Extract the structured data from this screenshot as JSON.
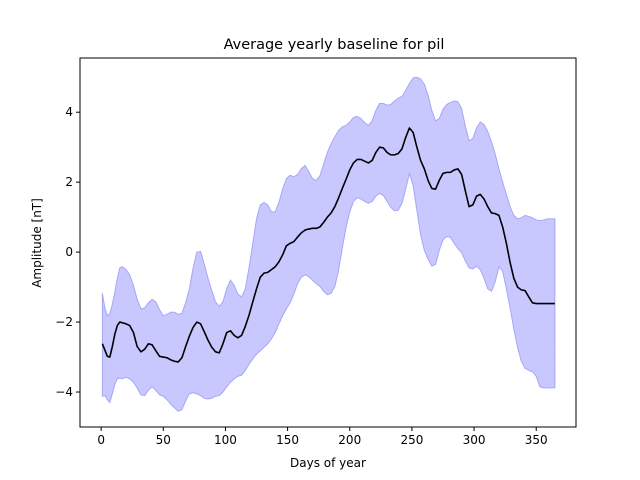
{
  "chart_data": {
    "type": "area",
    "title": "Average yearly baseline for pil",
    "xlabel": "Days of year",
    "ylabel": "Amplitude [nT]",
    "xlim": [
      -17,
      382
    ],
    "ylim": [
      -5.0,
      5.55
    ],
    "xticks": [
      0,
      50,
      100,
      150,
      200,
      250,
      300,
      350
    ],
    "yticks": [
      -4,
      -2,
      0,
      2,
      4
    ],
    "grid": false,
    "colors": {
      "mean_line": "#000000",
      "band_fill": "#c8c8ff",
      "band_edge": "#a6a6f6"
    },
    "series": [
      {
        "role": "mean",
        "x": [
          1,
          3,
          5,
          7,
          9,
          11,
          13,
          15,
          17,
          20,
          23,
          26,
          29,
          32,
          35,
          38,
          41,
          44,
          47,
          50,
          53,
          56,
          59,
          62,
          65,
          68,
          71,
          74,
          77,
          80,
          83,
          86,
          89,
          92,
          95,
          98,
          101,
          104,
          107,
          110,
          113,
          116,
          119,
          122,
          125,
          128,
          131,
          134,
          137,
          140,
          143,
          146,
          149,
          152,
          155,
          158,
          161,
          164,
          167,
          170,
          173,
          176,
          179,
          182,
          185,
          188,
          191,
          194,
          197,
          200,
          203,
          206,
          209,
          212,
          215,
          218,
          221,
          224,
          227,
          230,
          233,
          236,
          239,
          242,
          245,
          248,
          251,
          254,
          257,
          260,
          263,
          266,
          269,
          272,
          275,
          278,
          281,
          284,
          287,
          290,
          293,
          296,
          299,
          302,
          305,
          308,
          311,
          314,
          317,
          320,
          323,
          326,
          329,
          332,
          335,
          338,
          341,
          344,
          347,
          350,
          353,
          356,
          359,
          362,
          365
        ],
        "values": [
          -2.62,
          -2.8,
          -2.98,
          -3.0,
          -2.7,
          -2.35,
          -2.1,
          -2.0,
          -2.02,
          -2.05,
          -2.1,
          -2.3,
          -2.7,
          -2.85,
          -2.78,
          -2.62,
          -2.65,
          -2.82,
          -2.98,
          -3.0,
          -3.02,
          -3.08,
          -3.12,
          -3.14,
          -3.02,
          -2.7,
          -2.4,
          -2.15,
          -2.0,
          -2.05,
          -2.28,
          -2.52,
          -2.72,
          -2.85,
          -2.88,
          -2.62,
          -2.3,
          -2.25,
          -2.38,
          -2.45,
          -2.38,
          -2.12,
          -1.8,
          -1.42,
          -1.05,
          -0.72,
          -0.6,
          -0.58,
          -0.5,
          -0.42,
          -0.28,
          -0.08,
          0.18,
          0.25,
          0.3,
          0.43,
          0.55,
          0.63,
          0.66,
          0.68,
          0.68,
          0.72,
          0.85,
          1.0,
          1.12,
          1.3,
          1.55,
          1.82,
          2.08,
          2.35,
          2.55,
          2.65,
          2.65,
          2.6,
          2.55,
          2.62,
          2.85,
          3.0,
          2.98,
          2.85,
          2.78,
          2.78,
          2.82,
          2.95,
          3.28,
          3.55,
          3.42,
          3.0,
          2.62,
          2.38,
          2.05,
          1.82,
          1.8,
          2.05,
          2.25,
          2.28,
          2.28,
          2.35,
          2.38,
          2.22,
          1.75,
          1.3,
          1.35,
          1.6,
          1.65,
          1.52,
          1.3,
          1.12,
          1.1,
          1.05,
          0.72,
          0.25,
          -0.3,
          -0.75,
          -1.0,
          -1.08,
          -1.1,
          -1.28,
          -1.45,
          -1.47,
          -1.47,
          -1.47,
          -1.47,
          -1.47,
          -1.47
        ],
        "upper": [
          -1.18,
          -1.6,
          -1.82,
          -1.75,
          -1.5,
          -1.15,
          -0.75,
          -0.45,
          -0.42,
          -0.5,
          -0.65,
          -0.95,
          -1.35,
          -1.62,
          -1.6,
          -1.45,
          -1.35,
          -1.42,
          -1.65,
          -1.82,
          -1.78,
          -1.72,
          -1.72,
          -1.78,
          -1.75,
          -1.45,
          -1.05,
          -0.45,
          0.0,
          0.02,
          -0.35,
          -0.75,
          -1.1,
          -1.42,
          -1.55,
          -1.42,
          -1.05,
          -0.8,
          -0.95,
          -1.2,
          -1.28,
          -1.05,
          -0.45,
          0.25,
          0.95,
          1.35,
          1.42,
          1.35,
          1.15,
          1.15,
          1.42,
          1.8,
          2.1,
          2.2,
          2.15,
          2.22,
          2.38,
          2.48,
          2.3,
          2.1,
          2.05,
          2.18,
          2.52,
          2.85,
          3.1,
          3.3,
          3.48,
          3.58,
          3.62,
          3.72,
          3.85,
          3.88,
          3.82,
          3.7,
          3.62,
          3.75,
          4.05,
          4.25,
          4.25,
          4.2,
          4.22,
          4.32,
          4.4,
          4.45,
          4.62,
          4.82,
          4.98,
          5.0,
          4.95,
          4.8,
          4.48,
          4.05,
          3.75,
          3.82,
          4.08,
          4.22,
          4.28,
          4.32,
          4.3,
          4.1,
          3.6,
          3.18,
          3.25,
          3.55,
          3.72,
          3.65,
          3.45,
          3.15,
          2.8,
          2.38,
          2.0,
          1.65,
          1.3,
          1.05,
          0.95,
          0.98,
          1.05,
          1.02,
          0.98,
          0.92,
          0.9,
          0.92,
          0.95,
          0.95,
          0.95
        ],
        "lower": [
          -4.12,
          -4.1,
          -4.22,
          -4.3,
          -4.05,
          -3.78,
          -3.62,
          -3.6,
          -3.62,
          -3.58,
          -3.62,
          -3.72,
          -3.88,
          -4.08,
          -4.1,
          -3.95,
          -3.85,
          -3.95,
          -4.08,
          -4.12,
          -4.22,
          -4.35,
          -4.45,
          -4.55,
          -4.5,
          -4.25,
          -4.05,
          -4.02,
          -4.05,
          -4.1,
          -4.18,
          -4.2,
          -4.18,
          -4.12,
          -4.1,
          -4.0,
          -3.85,
          -3.72,
          -3.62,
          -3.55,
          -3.52,
          -3.38,
          -3.2,
          -3.05,
          -2.92,
          -2.82,
          -2.72,
          -2.62,
          -2.48,
          -2.3,
          -2.05,
          -1.82,
          -1.62,
          -1.45,
          -1.2,
          -0.9,
          -0.72,
          -0.65,
          -0.7,
          -0.8,
          -0.9,
          -0.98,
          -1.12,
          -1.22,
          -1.18,
          -0.98,
          -0.52,
          0.12,
          0.7,
          1.15,
          1.45,
          1.55,
          1.52,
          1.45,
          1.4,
          1.45,
          1.6,
          1.68,
          1.62,
          1.45,
          1.28,
          1.18,
          1.2,
          1.4,
          1.8,
          2.25,
          1.9,
          1.2,
          0.5,
          0.05,
          -0.2,
          -0.4,
          -0.35,
          0.05,
          0.35,
          0.45,
          0.42,
          0.25,
          0.1,
          -0.02,
          -0.25,
          -0.45,
          -0.48,
          -0.4,
          -0.5,
          -0.75,
          -1.05,
          -1.12,
          -0.85,
          -0.42,
          -0.55,
          -1.05,
          -1.6,
          -2.2,
          -2.72,
          -3.12,
          -3.32,
          -3.38,
          -3.42,
          -3.55,
          -3.85,
          -3.88,
          -3.88,
          -3.88,
          -3.88
        ]
      }
    ]
  }
}
